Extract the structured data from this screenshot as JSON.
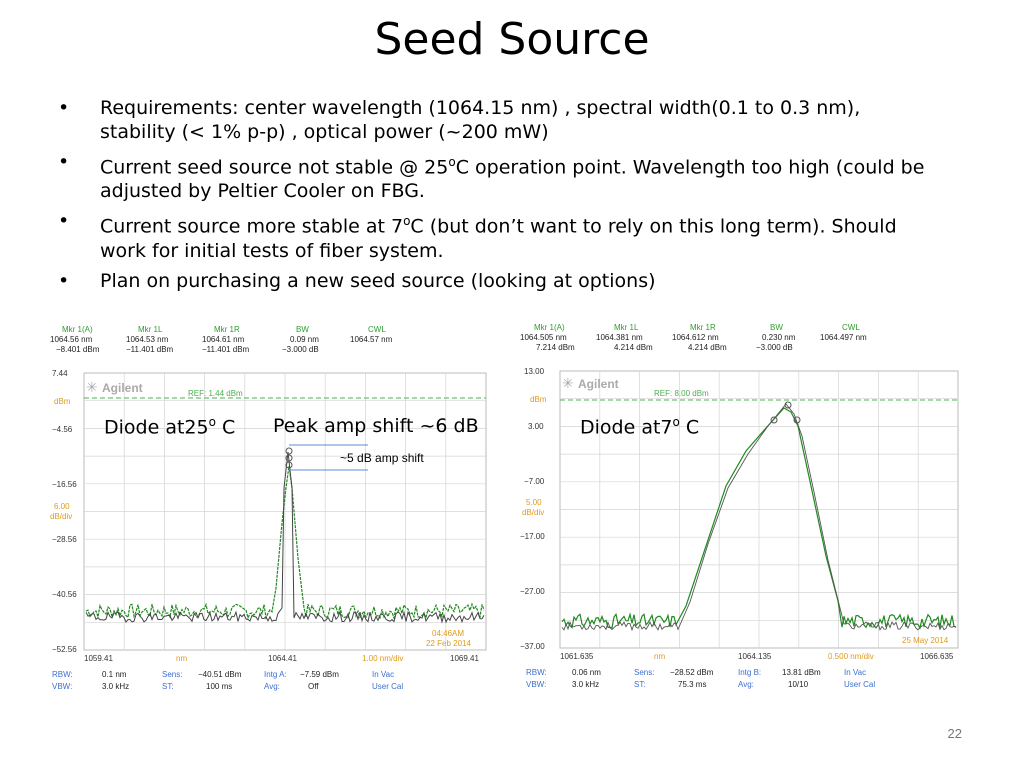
{
  "title": "Seed Source",
  "bullets": [
    {
      "text": "Requirements: center wavelength (1064.15 nm) , spectral width(0.1 to 0.3 nm), stability (< 1% p-p) , optical power (~200 mW)"
    },
    {
      "pre": "Current seed source not stable @ 25",
      "sup": "o",
      "post": "C operation point. Wavelength too high (could be adjusted by Peltier Cooler on FBG."
    },
    {
      "pre": "Current source more stable at 7",
      "sup": "o",
      "post": "C (but don’t want to rely on this long term). Should work for initial tests of fiber system."
    },
    {
      "text": "Plan on purchasing a new seed source (looking at options)"
    }
  ],
  "left_osa": {
    "markers": [
      {
        "label": "Mkr 1(A)",
        "v1": "1064.56 nm",
        "v2": "−8.401 dBm"
      },
      {
        "label": "Mkr 1L",
        "v1": "1064.53 nm",
        "v2": "−11.401 dBm"
      },
      {
        "label": "Mkr 1R",
        "v1": "1064.61 nm",
        "v2": "−11.401 dBm"
      },
      {
        "label": "BW",
        "v1": "0.09 nm",
        "v2": "−3.000 dB"
      },
      {
        "label": "CWL",
        "v1": "1064.57 nm",
        "v2": ""
      }
    ],
    "brand": "Agilent",
    "ref": "REF: 1.44 dBm",
    "unit": "dBm",
    "scale": [
      "6.00",
      "dB/div"
    ],
    "yticks": [
      "7.44",
      "−4.56",
      "−16.56",
      "−28.56",
      "−40.56",
      "−52.56"
    ],
    "x_left": "1059.41",
    "x_unit": "nm",
    "x_center": "1064.41",
    "x_div": "1.00 nm/div",
    "x_right": "1069.41",
    "time": "04:46AM",
    "date": "22 Feb 2014",
    "footer": [
      [
        "RBW:",
        "0.1 nm",
        "Sens:",
        "−40.51 dBm",
        "Intg A:",
        "−7.59 dBm",
        "In Vac"
      ],
      [
        "VBW:",
        "3.0 kHz",
        "ST:",
        "100 ms",
        "Avg:",
        "Off",
        "User Cal"
      ]
    ],
    "label_diode": {
      "pre": "Diode at25",
      "sup": "o",
      "post": " C"
    },
    "label_peak": "Peak amp shift ~6 dB",
    "label_shift": "~5 dB amp shift"
  },
  "right_osa": {
    "markers": [
      {
        "label": "Mkr 1(A)",
        "v1": "1064.505 nm",
        "v2": "7.214 dBm"
      },
      {
        "label": "Mkr 1L",
        "v1": "1064.381 nm",
        "v2": "4.214 dBm"
      },
      {
        "label": "Mkr 1R",
        "v1": "1064.612 nm",
        "v2": "4.214 dBm"
      },
      {
        "label": "BW",
        "v1": "0.230 nm",
        "v2": "−3.000 dB"
      },
      {
        "label": "CWL",
        "v1": "1064.497 nm",
        "v2": ""
      }
    ],
    "brand": "Agilent",
    "ref": "REF: 8.00 dBm",
    "unit": "dBm",
    "scale": [
      "5.00",
      "dB/div"
    ],
    "yticks": [
      "13.00",
      "3.00",
      "−7.00",
      "−17.00",
      "−27.00",
      "−37.00"
    ],
    "x_left": "1061.635",
    "x_unit": "nm",
    "x_center": "1064.135",
    "x_div": "0.500 nm/div",
    "x_right": "1066.635",
    "time": "",
    "date": "25 May 2014",
    "footer": [
      [
        "RBW:",
        "0.06 nm",
        "Sens:",
        "−28.52 dBm",
        "Intg B:",
        "13.81 dBm",
        "In Vac"
      ],
      [
        "VBW:",
        "3.0 kHz",
        "ST:",
        "75.3 ms",
        "Avg:",
        "10/10",
        "User Cal"
      ]
    ],
    "label_diode": {
      "pre": "Diode at7",
      "sup": "o",
      "post": " C"
    }
  },
  "page_number": "22",
  "colors": {
    "marker_green": "#2e9e2e",
    "trace_green": "#1f8a1f",
    "trace_dark": "#444444",
    "ref_green": "#4caf50",
    "axis_orange": "#e09a1a",
    "footer_blue": "#3c6fd0",
    "grid": "#cfcfcf"
  }
}
